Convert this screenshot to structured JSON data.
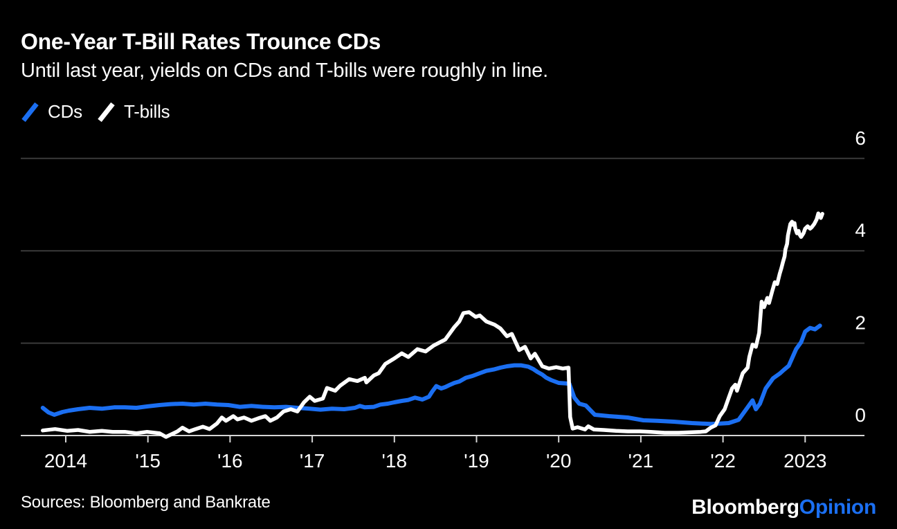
{
  "chart_data": {
    "type": "line",
    "title": "One-Year T-Bill Rates Trounce CDs",
    "subtitle": "Until last year, yields on CDs and T-bills were roughly in line.",
    "grid": true,
    "legend_position": "top-left",
    "colors": {
      "background": "#000000",
      "gridline": "#3a3a3a",
      "axis_line": "#d6d6d6",
      "tick_label": "#ffffff"
    },
    "x_axis": {
      "range": [
        2013.45,
        2023.73
      ],
      "ticks": [
        {
          "label": "2014",
          "year": 2014
        },
        {
          "label": "'15",
          "year": 2015
        },
        {
          "label": "'16",
          "year": 2016
        },
        {
          "label": "'17",
          "year": 2017
        },
        {
          "label": "'18",
          "year": 2018
        },
        {
          "label": "'19",
          "year": 2019
        },
        {
          "label": "'20",
          "year": 2020
        },
        {
          "label": "'21",
          "year": 2021
        },
        {
          "label": "'22",
          "year": 2022
        },
        {
          "label": "2023",
          "year": 2023
        }
      ]
    },
    "y_axis": {
      "range": [
        -0.1,
        6.4
      ],
      "unit": "percent",
      "ticks": [
        {
          "label": "0",
          "value": 0
        },
        {
          "label": "2",
          "value": 2
        },
        {
          "label": "4",
          "value": 4
        },
        {
          "label": "6",
          "value": 6
        }
      ]
    },
    "series": [
      {
        "name": "CDs",
        "color": "#1b6ff2",
        "points": [
          [
            2013.72,
            0.6
          ],
          [
            2013.79,
            0.5
          ],
          [
            2013.86,
            0.45
          ],
          [
            2013.96,
            0.51
          ],
          [
            2014.04,
            0.54
          ],
          [
            2014.15,
            0.57
          ],
          [
            2014.29,
            0.6
          ],
          [
            2014.44,
            0.58
          ],
          [
            2014.59,
            0.61
          ],
          [
            2014.72,
            0.61
          ],
          [
            2014.86,
            0.6
          ],
          [
            2014.99,
            0.63
          ],
          [
            2015.14,
            0.66
          ],
          [
            2015.28,
            0.68
          ],
          [
            2015.42,
            0.69
          ],
          [
            2015.56,
            0.67
          ],
          [
            2015.7,
            0.69
          ],
          [
            2015.84,
            0.67
          ],
          [
            2015.98,
            0.66
          ],
          [
            2016.12,
            0.62
          ],
          [
            2016.26,
            0.64
          ],
          [
            2016.4,
            0.62
          ],
          [
            2016.54,
            0.61
          ],
          [
            2016.68,
            0.62
          ],
          [
            2016.82,
            0.6
          ],
          [
            2016.97,
            0.58
          ],
          [
            2017.1,
            0.56
          ],
          [
            2017.24,
            0.58
          ],
          [
            2017.39,
            0.57
          ],
          [
            2017.52,
            0.6
          ],
          [
            2017.58,
            0.64
          ],
          [
            2017.64,
            0.61
          ],
          [
            2017.75,
            0.62
          ],
          [
            2017.83,
            0.67
          ],
          [
            2017.92,
            0.69
          ],
          [
            2018.0,
            0.72
          ],
          [
            2018.09,
            0.75
          ],
          [
            2018.17,
            0.77
          ],
          [
            2018.25,
            0.82
          ],
          [
            2018.34,
            0.78
          ],
          [
            2018.42,
            0.84
          ],
          [
            2018.46,
            0.95
          ],
          [
            2018.51,
            1.07
          ],
          [
            2018.57,
            1.02
          ],
          [
            2018.62,
            1.05
          ],
          [
            2018.68,
            1.1
          ],
          [
            2018.73,
            1.14
          ],
          [
            2018.79,
            1.17
          ],
          [
            2018.87,
            1.25
          ],
          [
            2018.95,
            1.29
          ],
          [
            2019.04,
            1.35
          ],
          [
            2019.12,
            1.4
          ],
          [
            2019.21,
            1.43
          ],
          [
            2019.29,
            1.47
          ],
          [
            2019.37,
            1.5
          ],
          [
            2019.46,
            1.52
          ],
          [
            2019.54,
            1.52
          ],
          [
            2019.63,
            1.49
          ],
          [
            2019.69,
            1.44
          ],
          [
            2019.74,
            1.38
          ],
          [
            2019.8,
            1.32
          ],
          [
            2019.85,
            1.25
          ],
          [
            2019.91,
            1.2
          ],
          [
            2020.0,
            1.14
          ],
          [
            2020.08,
            1.13
          ],
          [
            2020.13,
            1.12
          ],
          [
            2020.19,
            0.82
          ],
          [
            2020.25,
            0.69
          ],
          [
            2020.33,
            0.65
          ],
          [
            2020.44,
            0.45
          ],
          [
            2020.61,
            0.42
          ],
          [
            2020.84,
            0.39
          ],
          [
            2021.03,
            0.33
          ],
          [
            2021.2,
            0.32
          ],
          [
            2021.4,
            0.3
          ],
          [
            2021.62,
            0.27
          ],
          [
            2021.85,
            0.25
          ],
          [
            2021.96,
            0.26
          ],
          [
            2022.07,
            0.27
          ],
          [
            2022.19,
            0.34
          ],
          [
            2022.3,
            0.61
          ],
          [
            2022.36,
            0.76
          ],
          [
            2022.4,
            0.57
          ],
          [
            2022.45,
            0.69
          ],
          [
            2022.52,
            1.02
          ],
          [
            2022.61,
            1.24
          ],
          [
            2022.69,
            1.34
          ],
          [
            2022.74,
            1.42
          ],
          [
            2022.8,
            1.51
          ],
          [
            2022.89,
            1.87
          ],
          [
            2022.95,
            2.02
          ],
          [
            2023.0,
            2.25
          ],
          [
            2023.06,
            2.33
          ],
          [
            2023.12,
            2.3
          ],
          [
            2023.18,
            2.38
          ]
        ]
      },
      {
        "name": "T-bills",
        "color": "#ffffff",
        "points": [
          [
            2013.72,
            0.11
          ],
          [
            2013.87,
            0.14
          ],
          [
            2014.02,
            0.1
          ],
          [
            2014.15,
            0.12
          ],
          [
            2014.29,
            0.08
          ],
          [
            2014.44,
            0.1
          ],
          [
            2014.57,
            0.08
          ],
          [
            2014.72,
            0.08
          ],
          [
            2014.86,
            0.05
          ],
          [
            2014.99,
            0.08
          ],
          [
            2015.14,
            0.05
          ],
          [
            2015.22,
            -0.03
          ],
          [
            2015.36,
            0.09
          ],
          [
            2015.42,
            0.17
          ],
          [
            2015.5,
            0.09
          ],
          [
            2015.58,
            0.14
          ],
          [
            2015.67,
            0.19
          ],
          [
            2015.75,
            0.14
          ],
          [
            2015.84,
            0.26
          ],
          [
            2015.9,
            0.39
          ],
          [
            2015.95,
            0.32
          ],
          [
            2016.04,
            0.42
          ],
          [
            2016.09,
            0.35
          ],
          [
            2016.17,
            0.39
          ],
          [
            2016.26,
            0.32
          ],
          [
            2016.34,
            0.37
          ],
          [
            2016.43,
            0.42
          ],
          [
            2016.49,
            0.32
          ],
          [
            2016.57,
            0.39
          ],
          [
            2016.65,
            0.52
          ],
          [
            2016.74,
            0.57
          ],
          [
            2016.82,
            0.52
          ],
          [
            2016.9,
            0.72
          ],
          [
            2016.97,
            0.84
          ],
          [
            2017.03,
            0.75
          ],
          [
            2017.13,
            0.8
          ],
          [
            2017.18,
            1.03
          ],
          [
            2017.28,
            0.97
          ],
          [
            2017.34,
            1.08
          ],
          [
            2017.45,
            1.22
          ],
          [
            2017.55,
            1.18
          ],
          [
            2017.64,
            1.25
          ],
          [
            2017.66,
            1.15
          ],
          [
            2017.75,
            1.3
          ],
          [
            2017.81,
            1.35
          ],
          [
            2017.89,
            1.55
          ],
          [
            2018.0,
            1.67
          ],
          [
            2018.09,
            1.78
          ],
          [
            2018.17,
            1.7
          ],
          [
            2018.28,
            1.87
          ],
          [
            2018.38,
            1.82
          ],
          [
            2018.48,
            1.95
          ],
          [
            2018.62,
            2.08
          ],
          [
            2018.73,
            2.35
          ],
          [
            2018.79,
            2.47
          ],
          [
            2018.84,
            2.65
          ],
          [
            2018.91,
            2.67
          ],
          [
            2018.99,
            2.57
          ],
          [
            2019.04,
            2.6
          ],
          [
            2019.12,
            2.47
          ],
          [
            2019.22,
            2.4
          ],
          [
            2019.29,
            2.32
          ],
          [
            2019.37,
            2.15
          ],
          [
            2019.43,
            2.2
          ],
          [
            2019.52,
            1.85
          ],
          [
            2019.59,
            1.92
          ],
          [
            2019.66,
            1.67
          ],
          [
            2019.71,
            1.77
          ],
          [
            2019.8,
            1.5
          ],
          [
            2019.88,
            1.45
          ],
          [
            2019.97,
            1.48
          ],
          [
            2020.05,
            1.45
          ],
          [
            2020.12,
            1.47
          ],
          [
            2020.14,
            0.4
          ],
          [
            2020.17,
            0.15
          ],
          [
            2020.23,
            0.18
          ],
          [
            2020.32,
            0.13
          ],
          [
            2020.36,
            0.2
          ],
          [
            2020.43,
            0.13
          ],
          [
            2020.55,
            0.12
          ],
          [
            2020.7,
            0.1
          ],
          [
            2020.84,
            0.09
          ],
          [
            2020.99,
            0.09
          ],
          [
            2021.12,
            0.08
          ],
          [
            2021.29,
            0.06
          ],
          [
            2021.46,
            0.06
          ],
          [
            2021.62,
            0.07
          ],
          [
            2021.73,
            0.08
          ],
          [
            2021.79,
            0.09
          ],
          [
            2021.85,
            0.17
          ],
          [
            2021.91,
            0.22
          ],
          [
            2021.96,
            0.42
          ],
          [
            2022.02,
            0.57
          ],
          [
            2022.07,
            0.82
          ],
          [
            2022.11,
            1.02
          ],
          [
            2022.15,
            1.1
          ],
          [
            2022.17,
            0.97
          ],
          [
            2022.24,
            1.35
          ],
          [
            2022.3,
            1.47
          ],
          [
            2022.32,
            1.7
          ],
          [
            2022.36,
            1.97
          ],
          [
            2022.4,
            1.92
          ],
          [
            2022.44,
            2.22
          ],
          [
            2022.47,
            2.9
          ],
          [
            2022.5,
            2.78
          ],
          [
            2022.54,
            2.98
          ],
          [
            2022.56,
            2.87
          ],
          [
            2022.6,
            3.13
          ],
          [
            2022.63,
            3.32
          ],
          [
            2022.66,
            3.28
          ],
          [
            2022.69,
            3.5
          ],
          [
            2022.71,
            3.62
          ],
          [
            2022.73,
            3.76
          ],
          [
            2022.75,
            3.88
          ],
          [
            2022.76,
            4.03
          ],
          [
            2022.78,
            4.15
          ],
          [
            2022.79,
            4.33
          ],
          [
            2022.82,
            4.58
          ],
          [
            2022.84,
            4.63
          ],
          [
            2022.85,
            4.56
          ],
          [
            2022.87,
            4.6
          ],
          [
            2022.88,
            4.48
          ],
          [
            2022.9,
            4.38
          ],
          [
            2022.92,
            4.43
          ],
          [
            2022.93,
            4.36
          ],
          [
            2022.95,
            4.3
          ],
          [
            2022.98,
            4.38
          ],
          [
            2023.0,
            4.48
          ],
          [
            2023.03,
            4.53
          ],
          [
            2023.06,
            4.48
          ],
          [
            2023.08,
            4.51
          ],
          [
            2023.11,
            4.58
          ],
          [
            2023.14,
            4.68
          ],
          [
            2023.16,
            4.81
          ],
          [
            2023.18,
            4.75
          ],
          [
            2023.19,
            4.71
          ],
          [
            2023.21,
            4.8
          ]
        ]
      }
    ]
  },
  "footer": {
    "sources": "Sources: Bloomberg and Bankrate",
    "logo_bloomberg": "Bloomberg",
    "logo_opinion": "Opinion",
    "logo_opinion_color": "#1b6ff2"
  }
}
